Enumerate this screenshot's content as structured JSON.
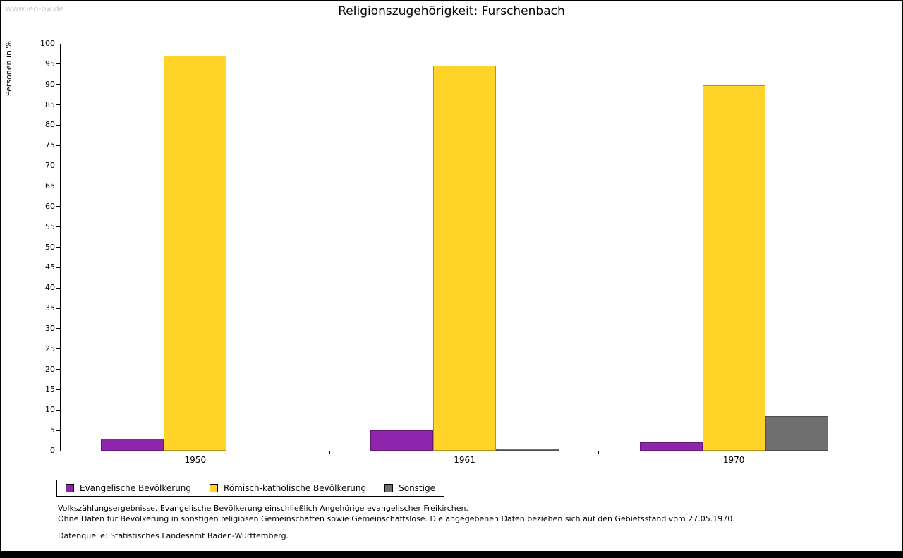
{
  "watermark": "www.leo-bw.de",
  "title": "Religionszugehörigkeit: Furschenbach",
  "chart_data": {
    "type": "bar",
    "title": "Religionszugehörigkeit: Furschenbach",
    "xlabel": "",
    "ylabel": "Personen in %",
    "ylim": [
      0,
      100
    ],
    "ytick_step": 5,
    "grid": false,
    "legend_position": "bottom-left",
    "categories": [
      "1950",
      "1961",
      "1970"
    ],
    "series": [
      {
        "name": "Evangelische Bevölkerung",
        "color": "#8f25ad",
        "values": [
          3,
          5,
          2
        ]
      },
      {
        "name": "Römisch-katholische Bevölkerung",
        "color": "#ffd328",
        "values": [
          97,
          94.7,
          89.7
        ]
      },
      {
        "name": "Sonstige",
        "color": "#6f6f6f",
        "values": [
          0,
          0.6,
          8.5
        ]
      }
    ]
  },
  "footnotes": {
    "line1": "Volkszählungsergebnisse. Evangelische Bevölkerung einschließlich Angehörige evangelischer Freikirchen.",
    "line2": "Ohne Daten für Bevölkerung in sonstigen religiösen Gemeinschaften sowie Gemeinschaftslose. Die angegebenen Daten beziehen sich auf den Gebietsstand vom 27.05.1970.",
    "source": "Datenquelle: Statistisches Landesamt Baden-Württemberg."
  }
}
